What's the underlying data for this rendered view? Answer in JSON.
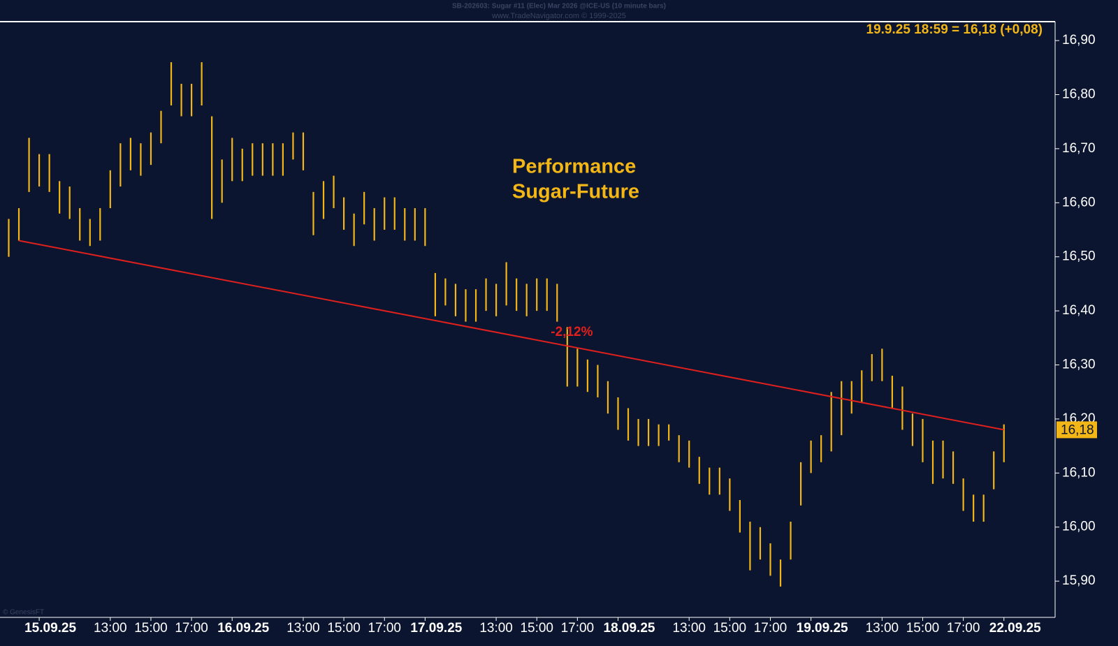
{
  "chart_data": {
    "type": "ohlc",
    "title": "SB-202603:  Sugar #11 (Elec) Mar 2026 @ICE-US  (10 minute bars)",
    "subtitle": "www.TradeNavigator.com © 1999-2025",
    "quote": "19.9.25 18:59 = 16,18 (+0,08)",
    "annotation": [
      "Performance",
      "Sugar-Future"
    ],
    "credit": "© GenesisFT",
    "color": "#f2b617",
    "x": [
      -1.5,
      -1,
      -0.5,
      0,
      0.5,
      1,
      1.5,
      2,
      2.5,
      3,
      3.5,
      4,
      4.5,
      5,
      5.5,
      6,
      6.5,
      7,
      7.5,
      8,
      8.5,
      9,
      9.5,
      10,
      10.5,
      11,
      11.5,
      12,
      12.5,
      13,
      13.5,
      14,
      14.5,
      15,
      15.5,
      16,
      16.5,
      17,
      17.5,
      18,
      18.5,
      19,
      19.5,
      20,
      20.5,
      21,
      21.5,
      22,
      22.5,
      23,
      23.5,
      24,
      24.5,
      25,
      25.5,
      26,
      26.5,
      27,
      27.5,
      28,
      28.5,
      29,
      29.5,
      30,
      30.5,
      31,
      31.5,
      32,
      32.5,
      33,
      33.5,
      34,
      34.5,
      35,
      35.5,
      36,
      36.5,
      37,
      37.5,
      38,
      38.5,
      39,
      39.5,
      40,
      40.5,
      41,
      41.5,
      42,
      42.5,
      43,
      43.5,
      44,
      44.5,
      45,
      45.5,
      46,
      46.5,
      47,
      47.5
    ],
    "high": [
      16.57,
      16.59,
      16.72,
      16.69,
      16.69,
      16.64,
      16.63,
      16.59,
      16.57,
      16.59,
      16.66,
      16.71,
      16.72,
      16.71,
      16.73,
      16.77,
      16.86,
      16.82,
      16.82,
      16.86,
      16.76,
      16.68,
      16.72,
      16.7,
      16.71,
      16.71,
      16.71,
      16.71,
      16.73,
      16.73,
      16.62,
      16.64,
      16.65,
      16.61,
      16.58,
      16.62,
      16.59,
      16.61,
      16.61,
      16.59,
      16.59,
      16.59,
      16.47,
      16.46,
      16.45,
      16.44,
      16.44,
      16.46,
      16.45,
      16.49,
      16.46,
      16.45,
      16.46,
      16.46,
      16.45,
      16.37,
      16.33,
      16.31,
      16.3,
      16.27,
      16.24,
      16.22,
      16.2,
      16.2,
      16.19,
      16.19,
      16.17,
      16.16,
      16.13,
      16.11,
      16.11,
      16.09,
      16.05,
      16.01,
      16.0,
      15.97,
      15.94,
      16.01,
      16.12,
      16.16,
      16.17,
      16.25,
      16.27,
      16.27,
      16.29,
      16.32,
      16.33,
      16.28,
      16.26,
      16.21,
      16.2,
      16.16,
      16.16,
      16.14,
      16.09,
      16.06,
      16.06,
      16.14,
      16.19
    ],
    "low": [
      16.5,
      16.53,
      16.62,
      16.63,
      16.62,
      16.58,
      16.57,
      16.53,
      16.52,
      16.53,
      16.59,
      16.63,
      16.66,
      16.65,
      16.67,
      16.71,
      16.78,
      16.76,
      16.76,
      16.78,
      16.57,
      16.6,
      16.64,
      16.64,
      16.65,
      16.65,
      16.65,
      16.65,
      16.68,
      16.66,
      16.54,
      16.57,
      16.59,
      16.55,
      16.52,
      16.56,
      16.53,
      16.55,
      16.55,
      16.53,
      16.53,
      16.52,
      16.39,
      16.41,
      16.39,
      16.38,
      16.38,
      16.4,
      16.39,
      16.41,
      16.4,
      16.39,
      16.4,
      16.4,
      16.38,
      16.26,
      16.26,
      16.25,
      16.24,
      16.21,
      16.18,
      16.16,
      16.15,
      16.15,
      16.15,
      16.16,
      16.12,
      16.11,
      16.08,
      16.06,
      16.06,
      16.03,
      15.99,
      15.92,
      15.94,
      15.91,
      15.89,
      15.94,
      16.04,
      16.1,
      16.12,
      16.14,
      16.17,
      16.21,
      16.23,
      16.27,
      16.27,
      16.22,
      16.18,
      16.15,
      16.12,
      16.08,
      16.09,
      16.08,
      16.03,
      16.01,
      16.01,
      16.07,
      16.12
    ],
    "xlim": [
      -1.93,
      50.02
    ],
    "ylim": [
      15.833,
      16.935
    ],
    "yticks": [
      {
        "value": 15.9,
        "label": "15,90"
      },
      {
        "value": 16.0,
        "label": "16,00"
      },
      {
        "value": 16.1,
        "label": "16,10"
      },
      {
        "value": 16.2,
        "label": "16,20"
      },
      {
        "value": 16.3,
        "label": "16,30"
      },
      {
        "value": 16.4,
        "label": "16,40"
      },
      {
        "value": 16.5,
        "label": "16,50"
      },
      {
        "value": 16.6,
        "label": "16,60"
      },
      {
        "value": 16.7,
        "label": "16,70"
      },
      {
        "value": 16.8,
        "label": "16,80"
      },
      {
        "value": 16.9,
        "label": "16,90"
      }
    ],
    "xticks": [
      {
        "value": 0,
        "label": "15.09.25"
      },
      {
        "value": 3.5,
        "label": "13:00"
      },
      {
        "value": 5.5,
        "label": "15:00"
      },
      {
        "value": 7.5,
        "label": "17:00"
      },
      {
        "value": 9.5,
        "label": "16.09.25"
      },
      {
        "value": 13,
        "label": "13:00"
      },
      {
        "value": 15,
        "label": "15:00"
      },
      {
        "value": 17,
        "label": "17:00"
      },
      {
        "value": 19,
        "label": "17.09.25"
      },
      {
        "value": 22.5,
        "label": "13:00"
      },
      {
        "value": 24.5,
        "label": "15:00"
      },
      {
        "value": 26.5,
        "label": "17:00"
      },
      {
        "value": 28.5,
        "label": "18.09.25"
      },
      {
        "value": 32,
        "label": "13:00"
      },
      {
        "value": 34,
        "label": "15:00"
      },
      {
        "value": 36,
        "label": "17:00"
      },
      {
        "value": 38,
        "label": "19.09.25"
      },
      {
        "value": 41.5,
        "label": "13:00"
      },
      {
        "value": 43.5,
        "label": "15:00"
      },
      {
        "value": 45.5,
        "label": "17:00"
      },
      {
        "value": 47.5,
        "label": "22.09.25"
      }
    ],
    "last_price": {
      "value": 16.18,
      "label": "16,18"
    },
    "trendline": {
      "x": [
        -1,
        47.5
      ],
      "y": [
        16.53,
        16.18
      ],
      "color": "#e0201c",
      "label": "-2,12%"
    }
  }
}
